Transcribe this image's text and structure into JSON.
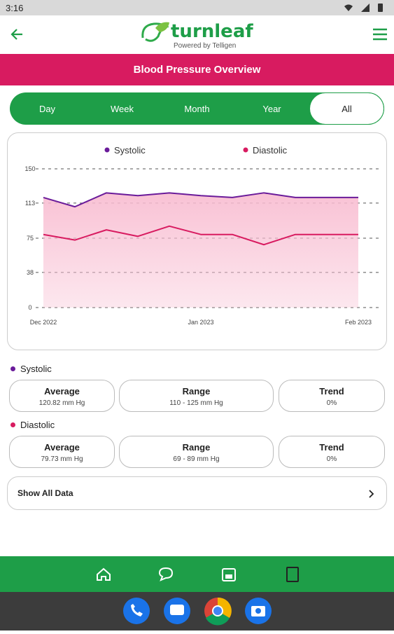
{
  "status_bar": {
    "time": "3:16"
  },
  "header": {
    "logo": "turnleaf",
    "tagline": "Powered by Telligen"
  },
  "banner": {
    "title": "Blood Pressure Overview"
  },
  "tabs": {
    "items": [
      "Day",
      "Week",
      "Month",
      "Year",
      "All"
    ],
    "selected": 4
  },
  "chart_data": {
    "type": "line",
    "categories": [
      "Dec 2022",
      null,
      null,
      null,
      null,
      "Jan 2023",
      null,
      null,
      null,
      null,
      "Feb 2023"
    ],
    "series": [
      {
        "name": "Systolic",
        "color": "#6a1b9a",
        "values": [
          119,
          109,
          124,
          121,
          124,
          121,
          119,
          124,
          119,
          119,
          119
        ]
      },
      {
        "name": "Diastolic",
        "color": "#d81b60",
        "values": [
          79,
          73,
          84,
          77,
          88,
          79,
          79,
          68,
          79,
          79,
          79
        ]
      }
    ],
    "ylim": [
      0,
      150
    ],
    "yticks": [
      0,
      38,
      75,
      113,
      150
    ],
    "grid": true,
    "area_color": "#f8bbd0"
  },
  "summary": [
    {
      "cards": [
        {
          "label": "Average",
          "value": "120.82 mm Hg"
        },
        {
          "label": "Range",
          "value": "110 - 125 mm Hg"
        },
        {
          "label": "Trend",
          "value": "0%"
        }
      ]
    },
    {
      "cards": [
        {
          "label": "Average",
          "value": "79.73 mm Hg"
        },
        {
          "label": "Range",
          "value": "69 - 89 mm Hg"
        },
        {
          "label": "Trend",
          "value": "0%"
        }
      ]
    }
  ],
  "show_all": "Show All Data"
}
